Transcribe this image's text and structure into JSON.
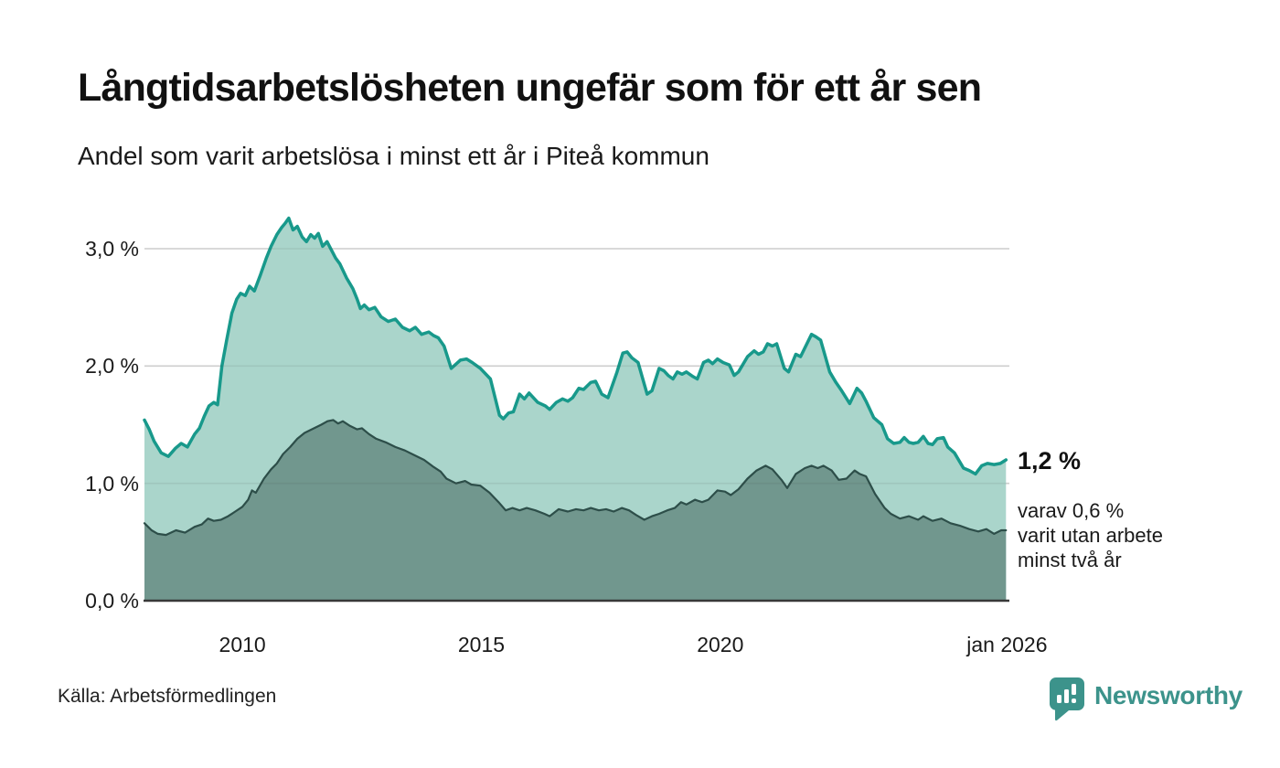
{
  "header": {
    "title": "Långtidsarbetslösheten ungefär som för ett år sen",
    "subtitle": "Andel som varit arbetslösa i minst ett år i Piteå kommun"
  },
  "chart_data": {
    "type": "area",
    "title": "Långtidsarbetslösheten ungefär som för ett år sen",
    "subtitle": "Andel som varit arbetslösa i minst ett år i Piteå kommun",
    "unit": "%",
    "x_domain": [
      2007.95,
      2026.05
    ],
    "ylim": [
      0,
      3.4
    ],
    "grid": "horizontal",
    "legend": "none",
    "colors": {
      "grid": "#dedede",
      "baseline": "#383838"
    },
    "yticks": [
      {
        "value": 3.0,
        "label": "3,0 %"
      },
      {
        "value": 2.0,
        "label": "2,0 %"
      },
      {
        "value": 1.0,
        "label": "1,0 %"
      },
      {
        "value": 0.0,
        "label": "0,0 %"
      }
    ],
    "xticks": [
      {
        "value": 2010,
        "label": "2010"
      },
      {
        "value": 2015,
        "label": "2015"
      },
      {
        "value": 2020,
        "label": "2020"
      },
      {
        "value": 2026,
        "label": "jan 2026"
      }
    ],
    "series": [
      {
        "name": "Andel arbetslösa minst ett år",
        "line_color": "#18998b",
        "fill_color": "#aad5cb",
        "points": [
          [
            2007.95,
            1.54
          ],
          [
            2008.05,
            1.46
          ],
          [
            2008.15,
            1.36
          ],
          [
            2008.3,
            1.26
          ],
          [
            2008.45,
            1.23
          ],
          [
            2008.6,
            1.3
          ],
          [
            2008.72,
            1.34
          ],
          [
            2008.85,
            1.31
          ],
          [
            2009.0,
            1.42
          ],
          [
            2009.1,
            1.47
          ],
          [
            2009.2,
            1.57
          ],
          [
            2009.3,
            1.66
          ],
          [
            2009.4,
            1.69
          ],
          [
            2009.48,
            1.67
          ],
          [
            2009.57,
            2.0
          ],
          [
            2009.67,
            2.22
          ],
          [
            2009.78,
            2.45
          ],
          [
            2009.88,
            2.57
          ],
          [
            2009.96,
            2.62
          ],
          [
            2010.06,
            2.6
          ],
          [
            2010.15,
            2.68
          ],
          [
            2010.25,
            2.64
          ],
          [
            2010.38,
            2.78
          ],
          [
            2010.5,
            2.92
          ],
          [
            2010.6,
            3.02
          ],
          [
            2010.72,
            3.12
          ],
          [
            2010.82,
            3.18
          ],
          [
            2010.9,
            3.22
          ],
          [
            2010.97,
            3.26
          ],
          [
            2011.06,
            3.16
          ],
          [
            2011.15,
            3.19
          ],
          [
            2011.25,
            3.1
          ],
          [
            2011.34,
            3.06
          ],
          [
            2011.43,
            3.12
          ],
          [
            2011.51,
            3.09
          ],
          [
            2011.59,
            3.13
          ],
          [
            2011.68,
            3.02
          ],
          [
            2011.77,
            3.06
          ],
          [
            2011.86,
            2.99
          ],
          [
            2011.95,
            2.92
          ],
          [
            2012.04,
            2.87
          ],
          [
            2012.18,
            2.75
          ],
          [
            2012.31,
            2.66
          ],
          [
            2012.4,
            2.57
          ],
          [
            2012.47,
            2.49
          ],
          [
            2012.55,
            2.52
          ],
          [
            2012.65,
            2.48
          ],
          [
            2012.77,
            2.5
          ],
          [
            2012.9,
            2.42
          ],
          [
            2013.05,
            2.38
          ],
          [
            2013.2,
            2.4
          ],
          [
            2013.35,
            2.33
          ],
          [
            2013.5,
            2.3
          ],
          [
            2013.62,
            2.33
          ],
          [
            2013.75,
            2.27
          ],
          [
            2013.9,
            2.29
          ],
          [
            2014.0,
            2.26
          ],
          [
            2014.1,
            2.24
          ],
          [
            2014.22,
            2.17
          ],
          [
            2014.37,
            1.98
          ],
          [
            2014.56,
            2.05
          ],
          [
            2014.69,
            2.06
          ],
          [
            2014.81,
            2.03
          ],
          [
            2014.98,
            1.98
          ],
          [
            2015.19,
            1.89
          ],
          [
            2015.38,
            1.58
          ],
          [
            2015.46,
            1.55
          ],
          [
            2015.57,
            1.6
          ],
          [
            2015.67,
            1.61
          ],
          [
            2015.8,
            1.76
          ],
          [
            2015.9,
            1.72
          ],
          [
            2016.0,
            1.77
          ],
          [
            2016.18,
            1.69
          ],
          [
            2016.34,
            1.66
          ],
          [
            2016.43,
            1.63
          ],
          [
            2016.57,
            1.69
          ],
          [
            2016.7,
            1.72
          ],
          [
            2016.81,
            1.7
          ],
          [
            2016.91,
            1.73
          ],
          [
            2017.04,
            1.81
          ],
          [
            2017.14,
            1.8
          ],
          [
            2017.29,
            1.86
          ],
          [
            2017.39,
            1.87
          ],
          [
            2017.52,
            1.76
          ],
          [
            2017.65,
            1.73
          ],
          [
            2017.84,
            1.95
          ],
          [
            2017.96,
            2.11
          ],
          [
            2018.05,
            2.12
          ],
          [
            2018.15,
            2.07
          ],
          [
            2018.28,
            2.03
          ],
          [
            2018.47,
            1.76
          ],
          [
            2018.57,
            1.79
          ],
          [
            2018.72,
            1.98
          ],
          [
            2018.82,
            1.96
          ],
          [
            2018.91,
            1.92
          ],
          [
            2019.01,
            1.89
          ],
          [
            2019.1,
            1.95
          ],
          [
            2019.2,
            1.93
          ],
          [
            2019.29,
            1.95
          ],
          [
            2019.43,
            1.91
          ],
          [
            2019.52,
            1.89
          ],
          [
            2019.65,
            2.03
          ],
          [
            2019.75,
            2.05
          ],
          [
            2019.84,
            2.02
          ],
          [
            2019.94,
            2.06
          ],
          [
            2020.06,
            2.03
          ],
          [
            2020.19,
            2.01
          ],
          [
            2020.29,
            1.92
          ],
          [
            2020.38,
            1.95
          ],
          [
            2020.57,
            2.08
          ],
          [
            2020.71,
            2.13
          ],
          [
            2020.8,
            2.1
          ],
          [
            2020.9,
            2.12
          ],
          [
            2020.99,
            2.19
          ],
          [
            2021.09,
            2.17
          ],
          [
            2021.18,
            2.19
          ],
          [
            2021.34,
            1.98
          ],
          [
            2021.43,
            1.95
          ],
          [
            2021.58,
            2.1
          ],
          [
            2021.68,
            2.08
          ],
          [
            2021.91,
            2.27
          ],
          [
            2022.0,
            2.25
          ],
          [
            2022.1,
            2.22
          ],
          [
            2022.29,
            1.95
          ],
          [
            2022.42,
            1.86
          ],
          [
            2022.54,
            1.79
          ],
          [
            2022.71,
            1.68
          ],
          [
            2022.86,
            1.81
          ],
          [
            2022.96,
            1.77
          ],
          [
            2023.05,
            1.7
          ],
          [
            2023.21,
            1.56
          ],
          [
            2023.38,
            1.5
          ],
          [
            2023.5,
            1.38
          ],
          [
            2023.63,
            1.34
          ],
          [
            2023.76,
            1.35
          ],
          [
            2023.85,
            1.39
          ],
          [
            2023.95,
            1.35
          ],
          [
            2024.04,
            1.34
          ],
          [
            2024.14,
            1.35
          ],
          [
            2024.25,
            1.4
          ],
          [
            2024.35,
            1.34
          ],
          [
            2024.44,
            1.33
          ],
          [
            2024.54,
            1.38
          ],
          [
            2024.67,
            1.39
          ],
          [
            2024.76,
            1.31
          ],
          [
            2024.9,
            1.26
          ],
          [
            2025.09,
            1.13
          ],
          [
            2025.21,
            1.11
          ],
          [
            2025.34,
            1.08
          ],
          [
            2025.47,
            1.15
          ],
          [
            2025.59,
            1.17
          ],
          [
            2025.73,
            1.16
          ],
          [
            2025.86,
            1.17
          ],
          [
            2025.98,
            1.2
          ]
        ],
        "last_value_label": "1,2 %"
      },
      {
        "name": "varav utan arbete minst två år",
        "line_color": "#2d4e49",
        "fill_color": "#71978e",
        "points": [
          [
            2007.95,
            0.66
          ],
          [
            2008.1,
            0.6
          ],
          [
            2008.23,
            0.57
          ],
          [
            2008.4,
            0.56
          ],
          [
            2008.61,
            0.6
          ],
          [
            2008.8,
            0.58
          ],
          [
            2009.0,
            0.63
          ],
          [
            2009.15,
            0.65
          ],
          [
            2009.28,
            0.7
          ],
          [
            2009.4,
            0.68
          ],
          [
            2009.55,
            0.69
          ],
          [
            2009.7,
            0.72
          ],
          [
            2009.85,
            0.76
          ],
          [
            2010.0,
            0.8
          ],
          [
            2010.12,
            0.86
          ],
          [
            2010.2,
            0.94
          ],
          [
            2010.28,
            0.92
          ],
          [
            2010.45,
            1.04
          ],
          [
            2010.6,
            1.12
          ],
          [
            2010.72,
            1.17
          ],
          [
            2010.85,
            1.25
          ],
          [
            2011.0,
            1.31
          ],
          [
            2011.15,
            1.38
          ],
          [
            2011.3,
            1.43
          ],
          [
            2011.5,
            1.47
          ],
          [
            2011.65,
            1.5
          ],
          [
            2011.78,
            1.53
          ],
          [
            2011.9,
            1.54
          ],
          [
            2012.0,
            1.51
          ],
          [
            2012.1,
            1.53
          ],
          [
            2012.25,
            1.49
          ],
          [
            2012.4,
            1.46
          ],
          [
            2012.5,
            1.47
          ],
          [
            2012.65,
            1.42
          ],
          [
            2012.8,
            1.38
          ],
          [
            2013.0,
            1.35
          ],
          [
            2013.2,
            1.31
          ],
          [
            2013.4,
            1.28
          ],
          [
            2013.6,
            1.24
          ],
          [
            2013.8,
            1.2
          ],
          [
            2014.0,
            1.14
          ],
          [
            2014.15,
            1.1
          ],
          [
            2014.27,
            1.04
          ],
          [
            2014.47,
            1.0
          ],
          [
            2014.66,
            1.02
          ],
          [
            2014.79,
            0.99
          ],
          [
            2014.98,
            0.98
          ],
          [
            2015.17,
            0.92
          ],
          [
            2015.36,
            0.84
          ],
          [
            2015.51,
            0.77
          ],
          [
            2015.65,
            0.79
          ],
          [
            2015.8,
            0.77
          ],
          [
            2015.95,
            0.79
          ],
          [
            2016.13,
            0.77
          ],
          [
            2016.32,
            0.74
          ],
          [
            2016.43,
            0.72
          ],
          [
            2016.62,
            0.78
          ],
          [
            2016.81,
            0.76
          ],
          [
            2016.98,
            0.78
          ],
          [
            2017.14,
            0.77
          ],
          [
            2017.29,
            0.79
          ],
          [
            2017.46,
            0.77
          ],
          [
            2017.61,
            0.78
          ],
          [
            2017.77,
            0.76
          ],
          [
            2017.94,
            0.79
          ],
          [
            2018.09,
            0.77
          ],
          [
            2018.24,
            0.73
          ],
          [
            2018.41,
            0.69
          ],
          [
            2018.57,
            0.72
          ],
          [
            2018.72,
            0.74
          ],
          [
            2018.89,
            0.77
          ],
          [
            2019.05,
            0.79
          ],
          [
            2019.18,
            0.84
          ],
          [
            2019.29,
            0.82
          ],
          [
            2019.47,
            0.86
          ],
          [
            2019.62,
            0.84
          ],
          [
            2019.75,
            0.86
          ],
          [
            2019.94,
            0.94
          ],
          [
            2020.1,
            0.93
          ],
          [
            2020.22,
            0.9
          ],
          [
            2020.38,
            0.95
          ],
          [
            2020.57,
            1.04
          ],
          [
            2020.76,
            1.11
          ],
          [
            2020.95,
            1.15
          ],
          [
            2021.09,
            1.12
          ],
          [
            2021.28,
            1.03
          ],
          [
            2021.4,
            0.96
          ],
          [
            2021.58,
            1.08
          ],
          [
            2021.77,
            1.13
          ],
          [
            2021.91,
            1.15
          ],
          [
            2022.04,
            1.13
          ],
          [
            2022.16,
            1.15
          ],
          [
            2022.33,
            1.11
          ],
          [
            2022.48,
            1.03
          ],
          [
            2022.64,
            1.04
          ],
          [
            2022.81,
            1.11
          ],
          [
            2022.92,
            1.08
          ],
          [
            2023.05,
            1.06
          ],
          [
            2023.24,
            0.91
          ],
          [
            2023.44,
            0.79
          ],
          [
            2023.57,
            0.74
          ],
          [
            2023.76,
            0.7
          ],
          [
            2023.95,
            0.72
          ],
          [
            2024.14,
            0.69
          ],
          [
            2024.25,
            0.72
          ],
          [
            2024.44,
            0.68
          ],
          [
            2024.63,
            0.7
          ],
          [
            2024.82,
            0.66
          ],
          [
            2025.01,
            0.64
          ],
          [
            2025.21,
            0.61
          ],
          [
            2025.4,
            0.59
          ],
          [
            2025.57,
            0.61
          ],
          [
            2025.73,
            0.57
          ],
          [
            2025.88,
            0.6
          ],
          [
            2025.98,
            0.6
          ]
        ],
        "last_value_label": "0,6 %"
      }
    ],
    "annotation": {
      "value_label": "1,2 %",
      "detail_lines": [
        "varav 0,6 %",
        "varit utan arbete",
        "minst två år"
      ]
    }
  },
  "footer": {
    "source": "Källa: Arbetsförmedlingen",
    "brand": {
      "name": "Newsworthy",
      "color": "#3c938b",
      "icon": "newsworthy-logo-icon"
    }
  }
}
